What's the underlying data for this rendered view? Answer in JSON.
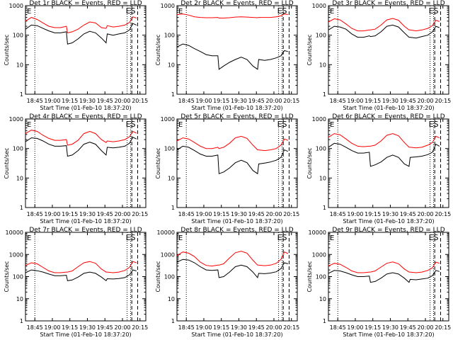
{
  "figure": {
    "series_colors": {
      "events": "#000000",
      "lld": "#ff0000"
    },
    "markers": {
      "start_label": "E",
      "end_label": "ES"
    }
  },
  "chart_data": [
    {
      "type": "line",
      "title": "Det 1r BLACK = Events, RED = LLD",
      "xlabel": "Start Time (01-Feb-10 18:37:20)",
      "ylabel": "Counts/sec",
      "y_scale": "log",
      "ylim": [
        1,
        1000
      ],
      "y_ticks": [
        1,
        10,
        100,
        1000
      ],
      "y_tick_labels": [
        "1",
        "10",
        "100",
        "1000"
      ],
      "x_range": [
        "18:37",
        "20:20"
      ],
      "x_tick_labels": [
        "18:45",
        "19:00",
        "19:15",
        "19:30",
        "19:45",
        "20:00",
        "20:15"
      ],
      "vlines_dotted": [
        "18:45",
        "20:04",
        "20:07"
      ],
      "vlines_dashed": [
        "20:08",
        "20:13"
      ],
      "x": [
        "18:37",
        "18:42",
        "18:47",
        "18:52",
        "18:57",
        "19:02",
        "19:07",
        "19:12",
        "19:13",
        "19:17",
        "19:22",
        "19:27",
        "19:32",
        "19:37",
        "19:42",
        "19:46",
        "19:47",
        "19:52",
        "19:57",
        "20:02",
        "20:06",
        "20:09",
        "20:12"
      ],
      "series": [
        {
          "values": [
            300,
            400,
            340,
            260,
            200,
            180,
            180,
            200,
            120,
            130,
            160,
            220,
            280,
            260,
            180,
            170,
            210,
            190,
            200,
            220,
            270,
            420,
            380
          ]
        },
        {
          "values": [
            160,
            220,
            210,
            170,
            140,
            120,
            120,
            130,
            50,
            55,
            75,
            110,
            135,
            120,
            80,
            55,
            110,
            100,
            110,
            120,
            150,
            250,
            220
          ]
        }
      ]
    },
    {
      "type": "line",
      "title": "Det 2r BLACK = Events, RED = LLD",
      "xlabel": "Start Time (01-Feb-10 18:37:20)",
      "ylabel": "Counts/sec",
      "y_scale": "log",
      "ylim": [
        1,
        1000
      ],
      "y_ticks": [
        1,
        10,
        100,
        1000
      ],
      "y_tick_labels": [
        "1",
        "10",
        "100",
        "1000"
      ],
      "x_range": [
        "18:37",
        "20:20"
      ],
      "x_tick_labels": [
        "18:45",
        "19:00",
        "19:15",
        "19:30",
        "19:45",
        "20:00",
        "20:15"
      ],
      "vlines_dotted": [
        "18:45",
        "20:04",
        "20:07"
      ],
      "vlines_dashed": [
        "20:08",
        "20:13"
      ],
      "x": [
        "18:37",
        "18:42",
        "18:47",
        "18:52",
        "18:57",
        "19:02",
        "19:07",
        "19:12",
        "19:13",
        "19:17",
        "19:22",
        "19:27",
        "19:32",
        "19:37",
        "19:42",
        "19:46",
        "19:47",
        "19:52",
        "19:57",
        "20:02",
        "20:06",
        "20:09",
        "20:12"
      ],
      "series": [
        {
          "values": [
            500,
            520,
            480,
            420,
            400,
            390,
            390,
            400,
            380,
            380,
            390,
            410,
            420,
            410,
            400,
            390,
            400,
            400,
            400,
            420,
            450,
            520,
            500
          ]
        },
        {
          "values": [
            40,
            50,
            45,
            35,
            28,
            22,
            20,
            20,
            7,
            9,
            12,
            15,
            18,
            15,
            9,
            7,
            15,
            14,
            15,
            17,
            20,
            30,
            28
          ]
        }
      ]
    },
    {
      "type": "line",
      "title": "Det 3r BLACK = Events, RED = LLD",
      "xlabel": "Start Time (01-Feb-10 18:37:20)",
      "ylabel": "Counts/sec",
      "y_scale": "log",
      "ylim": [
        1,
        1000
      ],
      "y_ticks": [
        1,
        10,
        100,
        1000
      ],
      "y_tick_labels": [
        "1",
        "10",
        "100",
        "1000"
      ],
      "x_range": [
        "18:37",
        "20:20"
      ],
      "x_tick_labels": [
        "18:45",
        "19:00",
        "19:15",
        "19:30",
        "19:45",
        "20:00",
        "20:15"
      ],
      "vlines_dotted": [
        "18:45",
        "20:04",
        "20:07"
      ],
      "vlines_dashed": [
        "20:08",
        "20:13"
      ],
      "x": [
        "18:37",
        "18:42",
        "18:47",
        "18:52",
        "18:57",
        "19:02",
        "19:07",
        "19:12",
        "19:13",
        "19:17",
        "19:22",
        "19:27",
        "19:32",
        "19:37",
        "19:42",
        "19:46",
        "19:47",
        "19:52",
        "19:57",
        "20:02",
        "20:06",
        "20:09",
        "20:12"
      ],
      "series": [
        {
          "values": [
            280,
            360,
            330,
            240,
            170,
            140,
            140,
            150,
            150,
            160,
            220,
            330,
            370,
            320,
            200,
            150,
            150,
            140,
            150,
            170,
            210,
            320,
            290
          ]
        },
        {
          "values": [
            150,
            200,
            190,
            160,
            110,
            85,
            85,
            95,
            90,
            95,
            130,
            200,
            220,
            190,
            120,
            85,
            85,
            80,
            90,
            100,
            130,
            200,
            180
          ]
        }
      ]
    },
    {
      "type": "line",
      "title": "Det 4r BLACK = Events, RED = LLD",
      "xlabel": "Start Time (01-Feb-10 18:37:20)",
      "ylabel": "Counts/sec",
      "y_scale": "log",
      "ylim": [
        1,
        1000
      ],
      "y_ticks": [
        1,
        10,
        100,
        1000
      ],
      "y_tick_labels": [
        "1",
        "10",
        "100",
        "1000"
      ],
      "x_range": [
        "18:37",
        "20:20"
      ],
      "x_tick_labels": [
        "18:45",
        "19:00",
        "19:15",
        "19:30",
        "19:45",
        "20:00",
        "20:15"
      ],
      "vlines_dotted": [
        "18:45",
        "20:04",
        "20:07"
      ],
      "vlines_dashed": [
        "20:08",
        "20:13"
      ],
      "x": [
        "18:37",
        "18:42",
        "18:47",
        "18:52",
        "18:57",
        "19:02",
        "19:07",
        "19:12",
        "19:13",
        "19:17",
        "19:22",
        "19:27",
        "19:32",
        "19:37",
        "19:42",
        "19:46",
        "19:47",
        "19:52",
        "19:57",
        "20:02",
        "20:06",
        "20:09",
        "20:12"
      ],
      "series": [
        {
          "values": [
            320,
            420,
            380,
            280,
            220,
            190,
            190,
            200,
            130,
            140,
            190,
            320,
            380,
            320,
            200,
            160,
            180,
            170,
            180,
            200,
            250,
            380,
            330
          ]
        },
        {
          "values": [
            170,
            230,
            220,
            180,
            140,
            120,
            120,
            125,
            55,
            60,
            85,
            140,
            165,
            140,
            85,
            60,
            110,
            105,
            110,
            120,
            150,
            240,
            210
          ]
        }
      ]
    },
    {
      "type": "line",
      "title": "Det 5r BLACK = Events, RED = LLD",
      "xlabel": "Start Time (01-Feb-10 18:37:20)",
      "ylabel": "Counts/sec",
      "y_scale": "log",
      "ylim": [
        1,
        1000
      ],
      "y_ticks": [
        1,
        10,
        100,
        1000
      ],
      "y_tick_labels": [
        "1",
        "10",
        "100",
        "1000"
      ],
      "x_range": [
        "18:37",
        "20:20"
      ],
      "x_tick_labels": [
        "18:45",
        "19:00",
        "19:15",
        "19:30",
        "19:45",
        "20:00",
        "20:15"
      ],
      "vlines_dotted": [
        "18:45",
        "20:04",
        "20:07"
      ],
      "vlines_dashed": [
        "20:08",
        "20:13"
      ],
      "x": [
        "18:37",
        "18:42",
        "18:47",
        "18:52",
        "18:57",
        "19:02",
        "19:07",
        "19:12",
        "19:13",
        "19:17",
        "19:22",
        "19:27",
        "19:32",
        "19:37",
        "19:42",
        "19:46",
        "19:47",
        "19:52",
        "19:57",
        "20:02",
        "20:06",
        "20:09",
        "20:12"
      ],
      "series": [
        {
          "values": [
            180,
            230,
            210,
            160,
            120,
            100,
            100,
            110,
            100,
            110,
            150,
            230,
            260,
            220,
            130,
            90,
            90,
            85,
            90,
            100,
            130,
            210,
            190
          ]
        },
        {
          "values": [
            90,
            120,
            110,
            85,
            65,
            55,
            55,
            60,
            14,
            16,
            22,
            33,
            40,
            33,
            18,
            14,
            30,
            32,
            35,
            40,
            50,
            90,
            80
          ]
        }
      ]
    },
    {
      "type": "line",
      "title": "Det 6r BLACK = Events, RED = LLD",
      "xlabel": "Start Time (01-Feb-10 18:37:20)",
      "ylabel": "Counts/sec",
      "y_scale": "log",
      "ylim": [
        1,
        1000
      ],
      "y_ticks": [
        1,
        10,
        100,
        1000
      ],
      "y_tick_labels": [
        "1",
        "10",
        "100",
        "1000"
      ],
      "x_range": [
        "18:37",
        "20:20"
      ],
      "x_tick_labels": [
        "18:45",
        "19:00",
        "19:15",
        "19:30",
        "19:45",
        "20:00",
        "20:15"
      ],
      "vlines_dotted": [
        "18:45",
        "20:04",
        "20:07"
      ],
      "vlines_dashed": [
        "20:08",
        "20:13"
      ],
      "x": [
        "18:37",
        "18:42",
        "18:47",
        "18:52",
        "18:57",
        "19:02",
        "19:07",
        "19:12",
        "19:13",
        "19:17",
        "19:22",
        "19:27",
        "19:32",
        "19:37",
        "19:42",
        "19:46",
        "19:47",
        "19:52",
        "19:57",
        "20:02",
        "20:06",
        "20:09",
        "20:12"
      ],
      "series": [
        {
          "values": [
            240,
            320,
            290,
            210,
            150,
            120,
            115,
            120,
            120,
            130,
            180,
            280,
            320,
            270,
            160,
            110,
            110,
            105,
            110,
            130,
            160,
            260,
            230
          ]
        },
        {
          "values": [
            110,
            150,
            140,
            110,
            85,
            70,
            70,
            75,
            25,
            28,
            35,
            50,
            60,
            50,
            30,
            25,
            50,
            52,
            55,
            62,
            75,
            140,
            120
          ]
        }
      ]
    },
    {
      "type": "line",
      "title": "Det 7r BLACK = Events, RED = LLD",
      "xlabel": "Start Time (01-Feb-10 18:37:20)",
      "ylabel": "Counts/sec",
      "y_scale": "log",
      "ylim": [
        1,
        10000
      ],
      "y_ticks": [
        1,
        10,
        100,
        1000,
        10000
      ],
      "y_tick_labels": [
        "1",
        "10",
        "100",
        "1000",
        "10000"
      ],
      "x_range": [
        "18:37",
        "20:20"
      ],
      "x_tick_labels": [
        "18:45",
        "19:00",
        "19:15",
        "19:30",
        "19:45",
        "20:00",
        "20:15"
      ],
      "vlines_dotted": [
        "18:45",
        "20:04",
        "20:07"
      ],
      "vlines_dashed": [
        "20:08",
        "20:13"
      ],
      "x": [
        "18:37",
        "18:42",
        "18:47",
        "18:52",
        "18:57",
        "19:02",
        "19:07",
        "19:12",
        "19:13",
        "19:17",
        "19:22",
        "19:27",
        "19:32",
        "19:37",
        "19:42",
        "19:46",
        "19:47",
        "19:52",
        "19:57",
        "20:02",
        "20:06",
        "20:09",
        "20:12"
      ],
      "series": [
        {
          "values": [
            320,
            420,
            380,
            260,
            180,
            150,
            150,
            160,
            160,
            180,
            280,
            420,
            480,
            400,
            220,
            160,
            160,
            150,
            160,
            190,
            260,
            480,
            420
          ]
        },
        {
          "values": [
            150,
            200,
            185,
            160,
            130,
            110,
            110,
            115,
            65,
            70,
            95,
            140,
            160,
            140,
            95,
            65,
            80,
            78,
            82,
            90,
            120,
            200,
            180
          ]
        }
      ]
    },
    {
      "type": "line",
      "title": "Det 8r BLACK = Events, RED = LLD",
      "xlabel": "Start Time (01-Feb-10 18:37:20)",
      "ylabel": "Counts/sec",
      "y_scale": "log",
      "ylim": [
        1,
        10000
      ],
      "y_ticks": [
        1,
        10,
        100,
        1000,
        10000
      ],
      "y_tick_labels": [
        "1",
        "10",
        "100",
        "1000",
        "10000"
      ],
      "x_range": [
        "18:37",
        "20:20"
      ],
      "x_tick_labels": [
        "18:45",
        "19:00",
        "19:15",
        "19:30",
        "19:45",
        "20:00",
        "20:15"
      ],
      "vlines_dotted": [
        "18:45",
        "20:04",
        "20:07"
      ],
      "vlines_dashed": [
        "20:08",
        "20:13"
      ],
      "x": [
        "18:37",
        "18:42",
        "18:47",
        "18:52",
        "18:57",
        "19:02",
        "19:07",
        "19:12",
        "19:13",
        "19:17",
        "19:22",
        "19:27",
        "19:32",
        "19:37",
        "19:42",
        "19:46",
        "19:47",
        "19:52",
        "19:57",
        "20:02",
        "20:06",
        "20:09",
        "20:12"
      ],
      "series": [
        {
          "values": [
            900,
            1300,
            1150,
            800,
            450,
            320,
            300,
            330,
            330,
            380,
            700,
            1200,
            1400,
            1150,
            550,
            330,
            330,
            310,
            330,
            400,
            600,
            1300,
            1100
          ]
        },
        {
          "values": [
            450,
            600,
            560,
            420,
            280,
            200,
            190,
            200,
            90,
            100,
            160,
            280,
            330,
            280,
            160,
            90,
            140,
            135,
            145,
            165,
            230,
            420,
            380
          ]
        }
      ]
    },
    {
      "type": "line",
      "title": "Det 9r BLACK = Events, RED = LLD",
      "xlabel": "Start Time (01-Feb-10 18:37:20)",
      "ylabel": "Counts/sec",
      "y_scale": "log",
      "ylim": [
        1,
        10000
      ],
      "y_ticks": [
        1,
        10,
        100,
        1000,
        10000
      ],
      "y_tick_labels": [
        "1",
        "10",
        "100",
        "1000",
        "10000"
      ],
      "x_range": [
        "18:37",
        "20:20"
      ],
      "x_tick_labels": [
        "18:45",
        "19:00",
        "19:15",
        "19:30",
        "19:45",
        "20:00",
        "20:15"
      ],
      "vlines_dotted": [
        "18:45",
        "20:04",
        "20:07"
      ],
      "vlines_dashed": [
        "20:08",
        "20:13"
      ],
      "x": [
        "18:37",
        "18:42",
        "18:47",
        "18:52",
        "18:57",
        "19:02",
        "19:07",
        "19:12",
        "19:13",
        "19:17",
        "19:22",
        "19:27",
        "19:32",
        "19:37",
        "19:42",
        "19:46",
        "19:47",
        "19:52",
        "19:57",
        "20:02",
        "20:06",
        "20:09",
        "20:12"
      ],
      "series": [
        {
          "values": [
            300,
            400,
            360,
            260,
            180,
            150,
            150,
            160,
            160,
            180,
            270,
            400,
            460,
            380,
            220,
            160,
            160,
            150,
            160,
            190,
            250,
            450,
            400
          ]
        },
        {
          "values": [
            140,
            190,
            180,
            150,
            120,
            100,
            100,
            105,
            55,
            60,
            85,
            130,
            150,
            130,
            85,
            55,
            75,
            72,
            78,
            85,
            110,
            190,
            170
          ]
        }
      ]
    }
  ]
}
